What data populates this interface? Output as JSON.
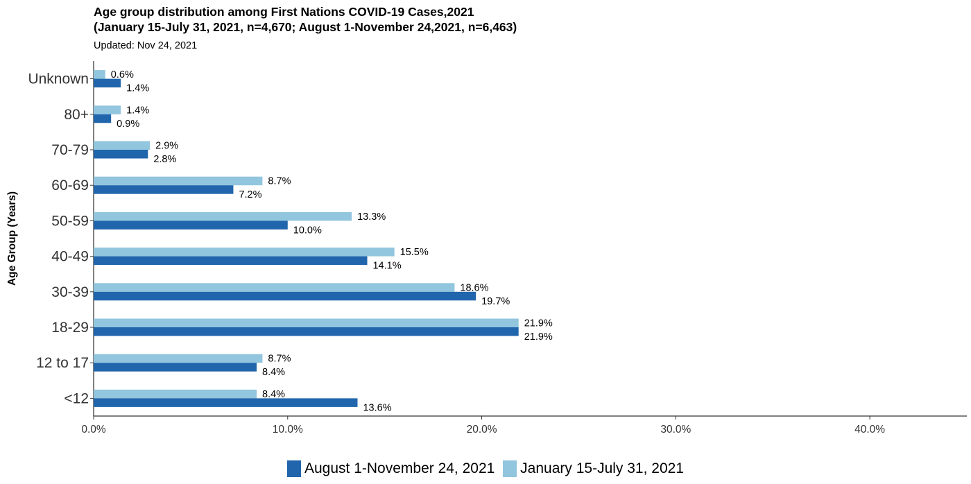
{
  "chart_data": {
    "type": "bar",
    "orientation": "horizontal",
    "title": "Age group distribution among First Nations COVID-19 Cases,2021",
    "title_line2": "(January 15-July 31, 2021, n=4,670; August 1-November 24,2021, n=6,463)",
    "subtitle": "Updated: Nov 24, 2021",
    "xlabel": "",
    "ylabel": "Age Group (Years)",
    "xlim": [
      0,
      45
    ],
    "x_ticks": [
      0,
      10,
      20,
      30,
      40
    ],
    "x_tick_labels": [
      "0.0%",
      "10.0%",
      "20.0%",
      "30.0%",
      "40.0%"
    ],
    "categories": [
      "Unknown",
      "80+",
      "70-79",
      "60-69",
      "50-59",
      "40-49",
      "30-39",
      "18-29",
      "12 to 17",
      "<12"
    ],
    "series": [
      {
        "name": "August 1-November 24, 2021",
        "color": "#2166ac",
        "values": [
          1.4,
          0.9,
          2.8,
          7.2,
          10.0,
          14.1,
          19.7,
          21.9,
          8.4,
          13.6
        ],
        "labels": [
          "1.4%",
          "0.9%",
          "2.8%",
          "7.2%",
          "10.0%",
          "14.1%",
          "19.7%",
          "21.9%",
          "8.4%",
          "13.6%"
        ]
      },
      {
        "name": "January 15-July 31, 2021",
        "color": "#92c5de",
        "values": [
          0.6,
          1.4,
          2.9,
          8.7,
          13.3,
          15.5,
          18.6,
          21.9,
          8.7,
          8.4
        ],
        "labels": [
          "0.6%",
          "1.4%",
          "2.9%",
          "8.7%",
          "13.3%",
          "15.5%",
          "18.6%",
          "21.9%",
          "8.7%",
          "8.4%"
        ]
      }
    ],
    "grid": false,
    "legend_position": "bottom"
  }
}
